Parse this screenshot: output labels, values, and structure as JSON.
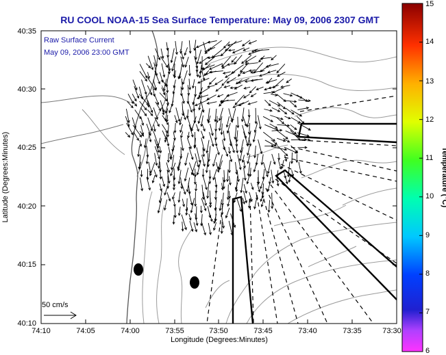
{
  "title": "RU COOL  NOAA-15  Sea Surface Temperature:  May 09, 2006 2307 GMT",
  "annotation": {
    "line1": "Raw Surface Current",
    "line2": "May 09, 2006 23:00 GMT"
  },
  "scale": {
    "label": "50 cm/s"
  },
  "axes": {
    "xlabel": "Longitude (Degrees:Minutes)",
    "ylabel": "Latitude (Degrees:Minutes)",
    "xticks": [
      "74:10",
      "74:05",
      "74:00",
      "73:55",
      "73:50",
      "73:45",
      "73:40",
      "73:35",
      "73:30"
    ],
    "yticks": [
      "40:35",
      "40:30",
      "40:25",
      "40:20",
      "40:15",
      "40:10"
    ]
  },
  "colorbar": {
    "label": "Temperature (°C)",
    "ticks": [
      "15",
      "14",
      "13",
      "12",
      "11",
      "10",
      "9",
      "8",
      "7",
      "6"
    ],
    "min": 6,
    "max": 15
  },
  "colors": {
    "title": "#1a1aa8",
    "annotation": "#1a1aa8",
    "land": "#ffffff",
    "contour": "#9a9a9a",
    "vectors": "#000000"
  },
  "icons": {
    "scale_arrow": "right-arrow-icon",
    "markers": "black-oval-marker"
  }
}
